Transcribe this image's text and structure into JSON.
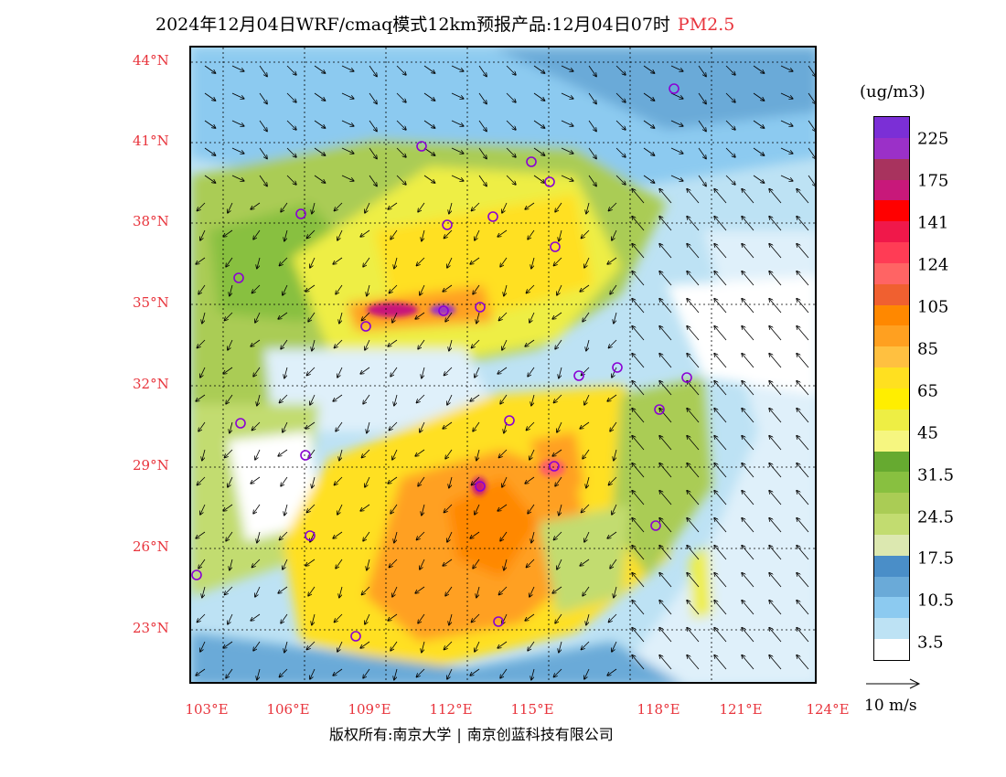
{
  "title": {
    "main": "2024年12月04日WRF/cmaq模式12km预报产品:12月04日07时",
    "pollutant": "PM2.5"
  },
  "axes": {
    "lat_labels": [
      "44°N",
      "41°N",
      "38°N",
      "35°N",
      "32°N",
      "29°N",
      "26°N",
      "23°N"
    ],
    "lon_labels": [
      "103°E",
      "106°E",
      "109°E",
      "112°E",
      "115°E",
      "118°E",
      "121°E",
      "124°E"
    ]
  },
  "colorbar": {
    "unit": "(ug/m3)",
    "labels": [
      "225",
      "175",
      "141",
      "124",
      "105",
      "85",
      "65",
      "45",
      "31.5",
      "24.5",
      "17.5",
      "10.5",
      "3.5"
    ],
    "colors_top_to_bottom": [
      "#7b2fd6",
      "#9b30c8",
      "#a8335e",
      "#c8187a",
      "#ff0000",
      "#f0184a",
      "#ff3c55",
      "#ff6464",
      "#f06030",
      "#ff8800",
      "#ffa020",
      "#ffc040",
      "#ffe020",
      "#ffee00",
      "#eeee44",
      "#f6f680",
      "#66aa30",
      "#88c040",
      "#aacc55",
      "#c2dc70",
      "#dce8b0",
      "#4a8ec8",
      "#6aaad8",
      "#8ccaf0",
      "#bde2f4",
      "#ffffff"
    ]
  },
  "wind": {
    "ref_label": "10 m/s"
  },
  "copyright": {
    "left": "版权所有:南京大学",
    "right": "南京创蓝科技有限公司"
  },
  "colors": {
    "label_red": "#e8343c"
  }
}
